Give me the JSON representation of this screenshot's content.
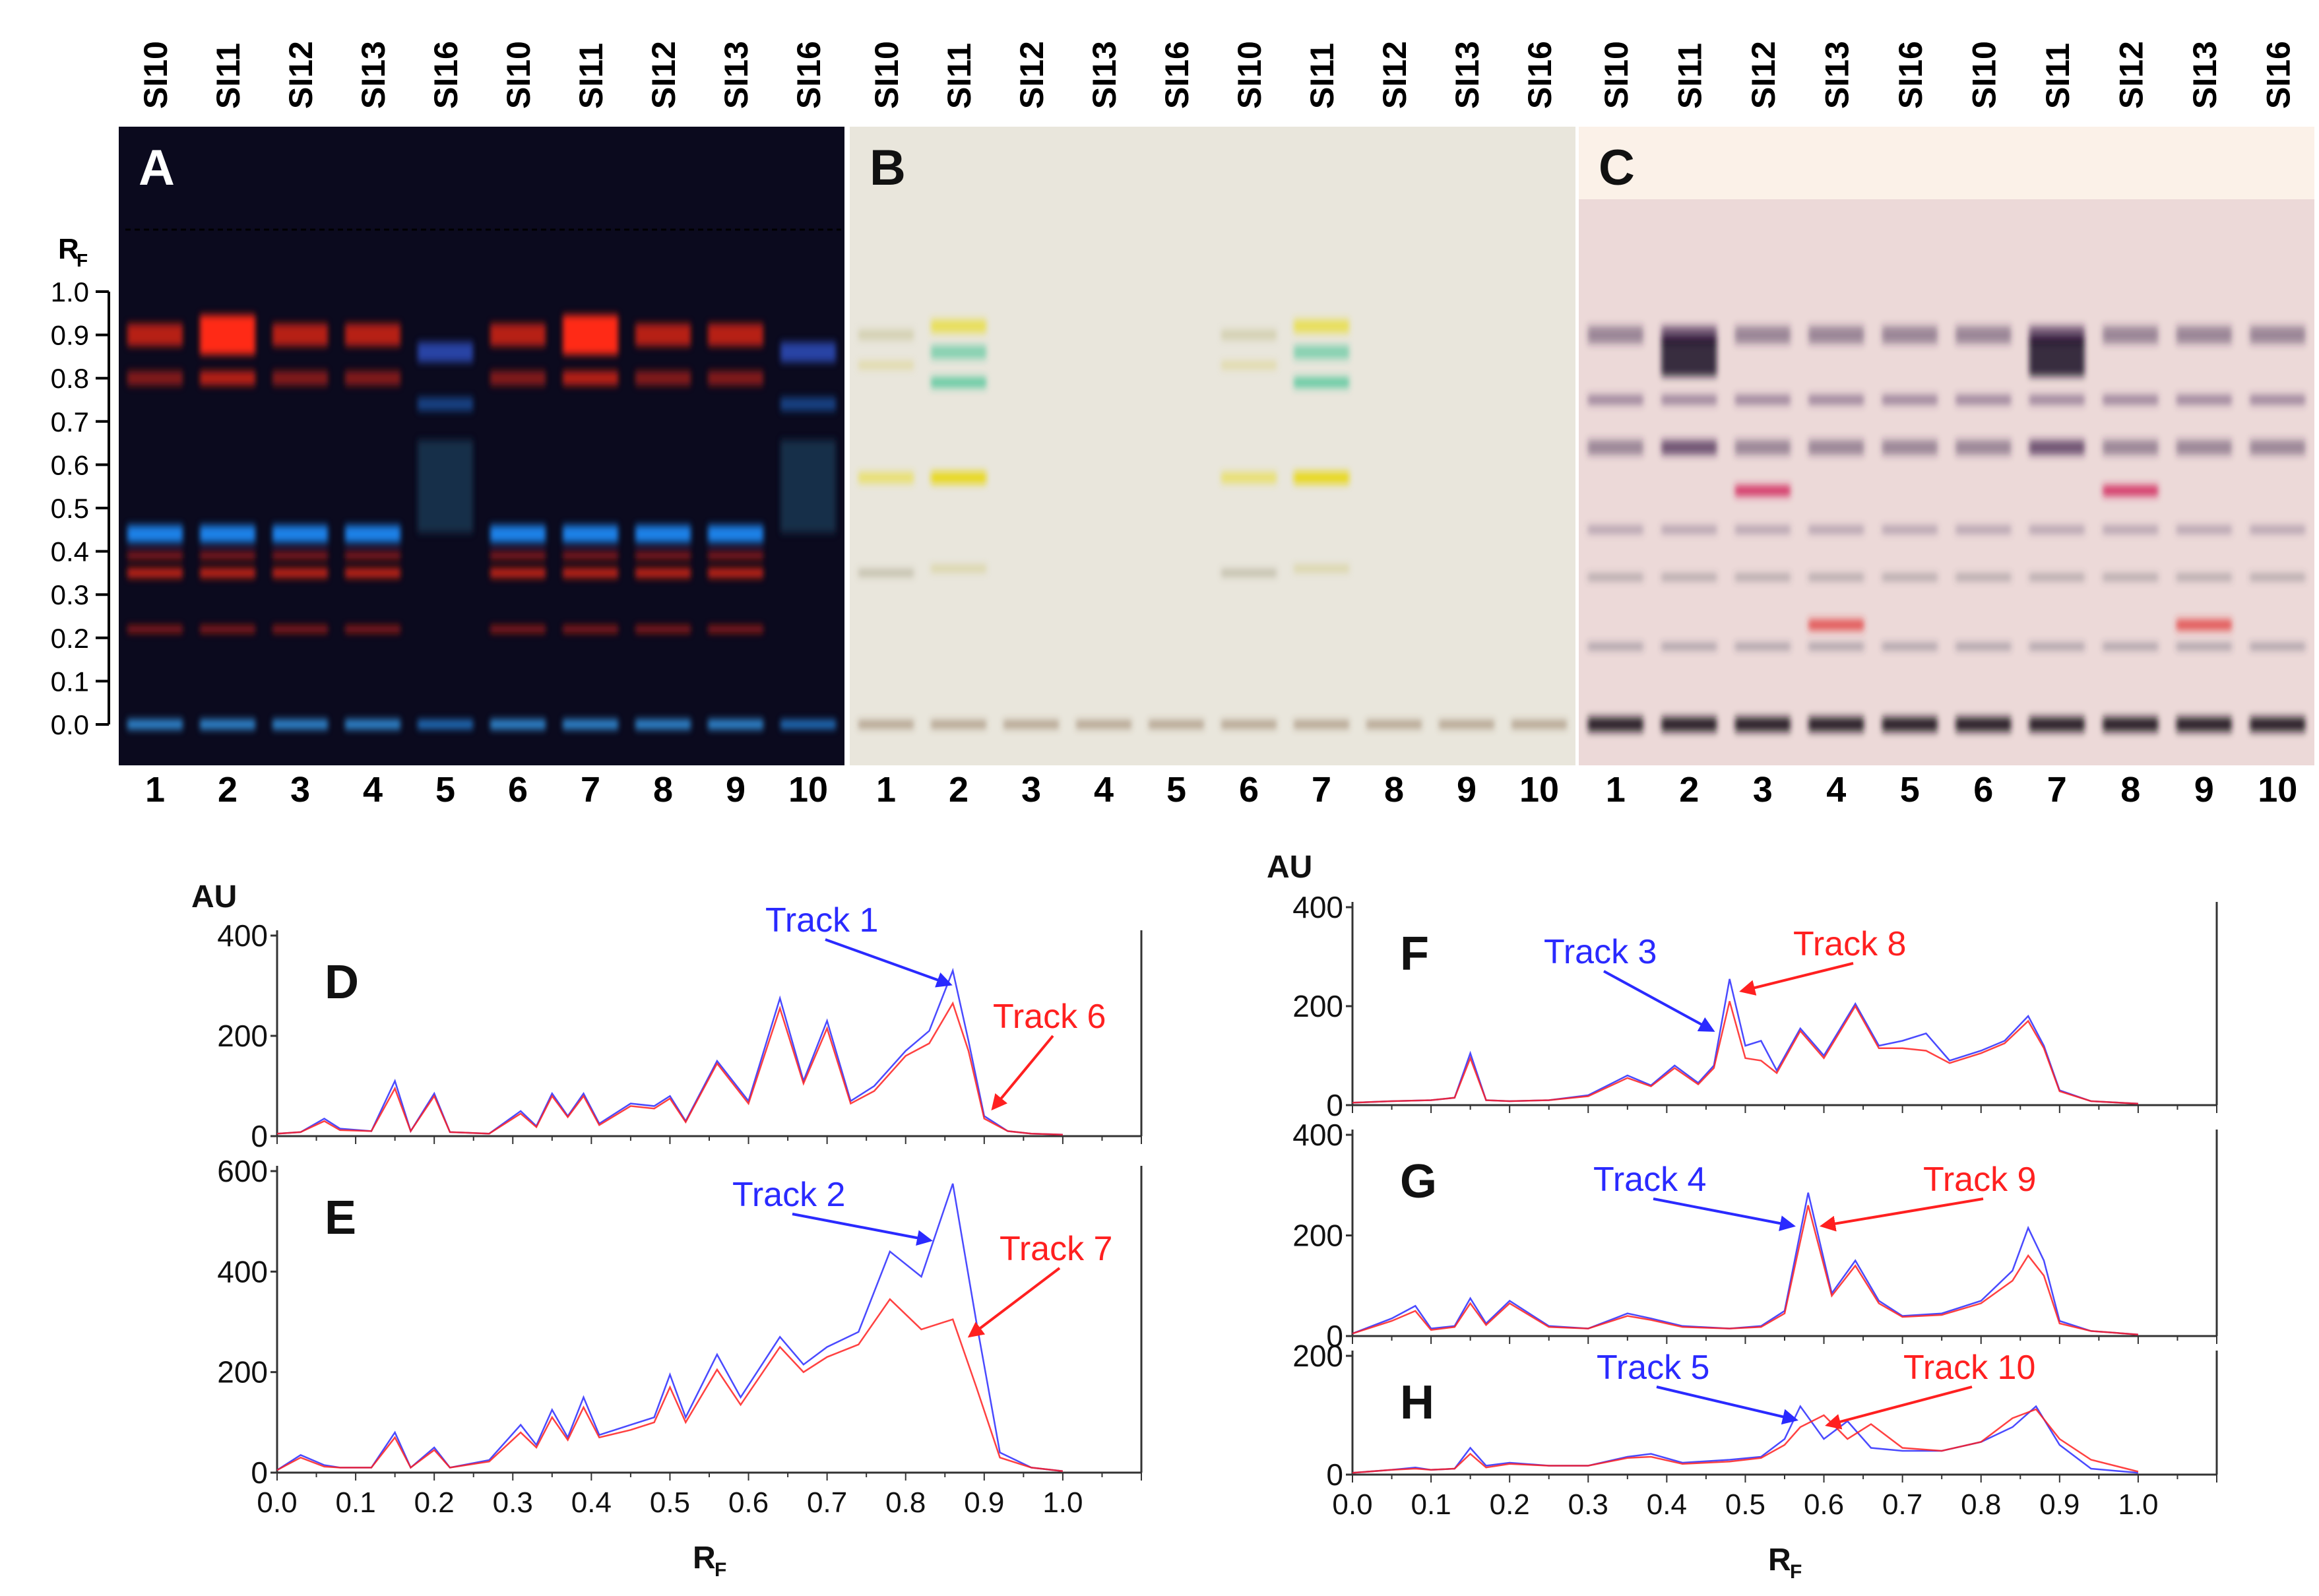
{
  "plates": {
    "sample_labels": [
      "SI10",
      "SI11",
      "SI12",
      "SI13",
      "SI16",
      "SI10",
      "SI11",
      "SI12",
      "SI13",
      "SI16"
    ],
    "track_numbers": [
      "1",
      "2",
      "3",
      "4",
      "5",
      "6",
      "7",
      "8",
      "9",
      "10"
    ],
    "rf_axis_label": "R",
    "rf_axis_subscript": "F",
    "rf_ticks": [
      "1.0",
      "0.9",
      "0.8",
      "0.7",
      "0.6",
      "0.5",
      "0.4",
      "0.3",
      "0.2",
      "0.1",
      "0.0"
    ],
    "panels": [
      {
        "letter": "A",
        "background": "#0b0a1e",
        "illumination": "fluorescence (UV 366 nm)"
      },
      {
        "letter": "B",
        "background": "#e9e6dc",
        "illumination": "white light"
      },
      {
        "letter": "C",
        "background": "#ecd9d8",
        "illumination": "white light, derivatized"
      }
    ],
    "colors": {
      "A_red": "#ff2a12",
      "A_blue": "#1f8fff",
      "B_yellow": "#e8dd3a",
      "B_green": "#2fbf8a",
      "C_purple": "#3a2048",
      "C_magenta": "#d0215a"
    }
  },
  "densitograms": {
    "y_unit_label": "AU",
    "x_label": "R",
    "x_label_subscript": "F",
    "x_ticks": [
      "0.0",
      "0.1",
      "0.2",
      "0.3",
      "0.4",
      "0.5",
      "0.6",
      "0.7",
      "0.8",
      "0.9",
      "1.0"
    ],
    "series_colors": {
      "blue": "#2a2aff",
      "red": "#ff2020"
    }
  },
  "chart_data": [
    {
      "type": "line",
      "panel": "D",
      "xlabel": "RF",
      "ylabel": "AU",
      "xlim": [
        0.0,
        1.1
      ],
      "ylim": [
        0,
        400
      ],
      "yticks": [
        0,
        200,
        400
      ],
      "annotations": [
        {
          "text": "Track 1",
          "color": "blue"
        },
        {
          "text": "Track 6",
          "color": "red"
        }
      ],
      "series": [
        {
          "name": "Track 1",
          "color": "#2a2aff",
          "x": [
            0.0,
            0.03,
            0.06,
            0.08,
            0.12,
            0.15,
            0.17,
            0.2,
            0.22,
            0.27,
            0.31,
            0.33,
            0.35,
            0.37,
            0.39,
            0.41,
            0.45,
            0.48,
            0.5,
            0.52,
            0.56,
            0.6,
            0.64,
            0.67,
            0.7,
            0.73,
            0.76,
            0.8,
            0.83,
            0.86,
            0.88,
            0.9,
            0.93,
            0.96,
            1.0
          ],
          "y": [
            5,
            8,
            35,
            15,
            10,
            110,
            10,
            85,
            8,
            5,
            50,
            20,
            85,
            40,
            85,
            25,
            65,
            60,
            80,
            30,
            150,
            70,
            275,
            110,
            230,
            70,
            100,
            170,
            210,
            330,
            190,
            40,
            10,
            5,
            3
          ]
        },
        {
          "name": "Track 6",
          "color": "#ff2020",
          "x": [
            0.0,
            0.03,
            0.06,
            0.08,
            0.12,
            0.15,
            0.17,
            0.2,
            0.22,
            0.27,
            0.31,
            0.33,
            0.35,
            0.37,
            0.39,
            0.41,
            0.45,
            0.48,
            0.5,
            0.52,
            0.56,
            0.6,
            0.64,
            0.67,
            0.7,
            0.73,
            0.76,
            0.8,
            0.83,
            0.86,
            0.88,
            0.9,
            0.93,
            0.96,
            1.0
          ],
          "y": [
            5,
            8,
            30,
            12,
            10,
            95,
            10,
            80,
            8,
            5,
            45,
            18,
            80,
            38,
            80,
            22,
            60,
            55,
            75,
            28,
            145,
            65,
            255,
            105,
            215,
            65,
            90,
            160,
            185,
            265,
            170,
            35,
            10,
            5,
            3
          ]
        }
      ]
    },
    {
      "type": "line",
      "panel": "E",
      "xlabel": "RF",
      "ylabel": "AU",
      "xlim": [
        0.0,
        1.1
      ],
      "ylim": [
        0,
        600
      ],
      "yticks": [
        0,
        200,
        400,
        600
      ],
      "annotations": [
        {
          "text": "Track 2",
          "color": "blue"
        },
        {
          "text": "Track 7",
          "color": "red"
        }
      ],
      "series": [
        {
          "name": "Track 2",
          "color": "#2a2aff",
          "x": [
            0.0,
            0.03,
            0.06,
            0.08,
            0.12,
            0.15,
            0.17,
            0.2,
            0.22,
            0.27,
            0.31,
            0.33,
            0.35,
            0.37,
            0.39,
            0.41,
            0.45,
            0.48,
            0.5,
            0.52,
            0.56,
            0.59,
            0.64,
            0.67,
            0.7,
            0.74,
            0.78,
            0.82,
            0.86,
            0.89,
            0.92,
            0.96,
            1.0
          ],
          "y": [
            5,
            35,
            15,
            10,
            10,
            80,
            10,
            50,
            10,
            25,
            95,
            55,
            125,
            70,
            150,
            75,
            95,
            110,
            195,
            110,
            235,
            150,
            270,
            215,
            250,
            280,
            440,
            390,
            575,
            300,
            40,
            10,
            3
          ]
        },
        {
          "name": "Track 7",
          "color": "#ff2020",
          "x": [
            0.0,
            0.03,
            0.06,
            0.08,
            0.12,
            0.15,
            0.17,
            0.2,
            0.22,
            0.27,
            0.31,
            0.33,
            0.35,
            0.37,
            0.39,
            0.41,
            0.45,
            0.48,
            0.5,
            0.52,
            0.56,
            0.59,
            0.64,
            0.67,
            0.7,
            0.74,
            0.78,
            0.82,
            0.86,
            0.89,
            0.92,
            0.96,
            1.0
          ],
          "y": [
            5,
            30,
            12,
            10,
            10,
            70,
            10,
            45,
            10,
            22,
            80,
            50,
            110,
            65,
            130,
            70,
            85,
            100,
            170,
            100,
            205,
            135,
            250,
            200,
            230,
            255,
            345,
            285,
            305,
            170,
            30,
            10,
            3
          ]
        }
      ]
    },
    {
      "type": "line",
      "panel": "F",
      "xlabel": "RF",
      "ylabel": "AU",
      "xlim": [
        0.0,
        1.1
      ],
      "ylim": [
        0,
        400
      ],
      "yticks": [
        0,
        200,
        400
      ],
      "annotations": [
        {
          "text": "Track 8",
          "color": "red"
        },
        {
          "text": "Track 3",
          "color": "blue"
        }
      ],
      "series": [
        {
          "name": "Track 3",
          "color": "#2a2aff",
          "x": [
            0.0,
            0.05,
            0.1,
            0.13,
            0.15,
            0.17,
            0.2,
            0.25,
            0.3,
            0.35,
            0.38,
            0.41,
            0.44,
            0.46,
            0.48,
            0.5,
            0.52,
            0.54,
            0.57,
            0.6,
            0.64,
            0.67,
            0.7,
            0.73,
            0.76,
            0.8,
            0.83,
            0.86,
            0.88,
            0.9,
            0.94,
            1.0
          ],
          "y": [
            5,
            8,
            10,
            15,
            105,
            10,
            8,
            10,
            20,
            60,
            40,
            80,
            45,
            80,
            255,
            120,
            130,
            70,
            155,
            100,
            205,
            120,
            130,
            145,
            90,
            110,
            130,
            180,
            120,
            30,
            8,
            3
          ]
        },
        {
          "name": "Track 8",
          "color": "#ff2020",
          "x": [
            0.0,
            0.05,
            0.1,
            0.13,
            0.15,
            0.17,
            0.2,
            0.25,
            0.3,
            0.35,
            0.38,
            0.41,
            0.44,
            0.46,
            0.48,
            0.5,
            0.52,
            0.54,
            0.57,
            0.6,
            0.64,
            0.67,
            0.7,
            0.73,
            0.76,
            0.8,
            0.83,
            0.86,
            0.88,
            0.9,
            0.94,
            1.0
          ],
          "y": [
            5,
            8,
            10,
            15,
            95,
            10,
            8,
            10,
            18,
            55,
            38,
            75,
            42,
            75,
            210,
            95,
            90,
            65,
            150,
            95,
            200,
            115,
            115,
            110,
            85,
            105,
            125,
            170,
            115,
            28,
            8,
            3
          ]
        }
      ]
    },
    {
      "type": "line",
      "panel": "G",
      "xlabel": "RF",
      "ylabel": "AU",
      "xlim": [
        0.0,
        1.1
      ],
      "ylim": [
        0,
        400
      ],
      "yticks": [
        0,
        200,
        400
      ],
      "annotations": [
        {
          "text": "Track 4",
          "color": "blue"
        },
        {
          "text": "Track 9",
          "color": "red"
        }
      ],
      "series": [
        {
          "name": "Track 4",
          "color": "#2a2aff",
          "x": [
            0.0,
            0.05,
            0.08,
            0.1,
            0.13,
            0.15,
            0.17,
            0.2,
            0.25,
            0.3,
            0.35,
            0.38,
            0.42,
            0.48,
            0.52,
            0.55,
            0.58,
            0.61,
            0.64,
            0.67,
            0.7,
            0.75,
            0.8,
            0.84,
            0.86,
            0.88,
            0.9,
            0.94,
            1.0
          ],
          "y": [
            5,
            35,
            60,
            15,
            20,
            75,
            25,
            70,
            20,
            15,
            45,
            35,
            20,
            15,
            20,
            50,
            285,
            85,
            150,
            70,
            40,
            45,
            70,
            130,
            215,
            150,
            30,
            10,
            3
          ]
        },
        {
          "name": "Track 9",
          "color": "#ff2020",
          "x": [
            0.0,
            0.05,
            0.08,
            0.1,
            0.13,
            0.15,
            0.17,
            0.2,
            0.25,
            0.3,
            0.35,
            0.38,
            0.42,
            0.48,
            0.52,
            0.55,
            0.58,
            0.61,
            0.64,
            0.67,
            0.7,
            0.75,
            0.8,
            0.84,
            0.86,
            0.88,
            0.9,
            0.94,
            1.0
          ],
          "y": [
            5,
            30,
            50,
            12,
            18,
            65,
            22,
            65,
            18,
            15,
            40,
            32,
            18,
            15,
            18,
            45,
            260,
            80,
            140,
            65,
            38,
            42,
            65,
            110,
            160,
            120,
            25,
            10,
            3
          ]
        }
      ]
    },
    {
      "type": "line",
      "panel": "H",
      "xlabel": "RF",
      "ylabel": "AU",
      "xlim": [
        0.0,
        1.1
      ],
      "ylim": [
        0,
        200
      ],
      "yticks": [
        0,
        200
      ],
      "annotations": [
        {
          "text": "Track 5",
          "color": "blue"
        },
        {
          "text": "Track 10",
          "color": "red"
        }
      ],
      "series": [
        {
          "name": "Track 5",
          "color": "#2a2aff",
          "x": [
            0.0,
            0.05,
            0.08,
            0.1,
            0.13,
            0.15,
            0.17,
            0.2,
            0.25,
            0.3,
            0.35,
            0.38,
            0.42,
            0.48,
            0.52,
            0.55,
            0.57,
            0.6,
            0.63,
            0.66,
            0.7,
            0.75,
            0.8,
            0.84,
            0.87,
            0.9,
            0.94,
            1.0
          ],
          "y": [
            3,
            8,
            12,
            8,
            10,
            45,
            15,
            20,
            15,
            15,
            30,
            35,
            20,
            25,
            30,
            60,
            115,
            60,
            90,
            45,
            40,
            40,
            55,
            80,
            115,
            50,
            10,
            3
          ]
        },
        {
          "name": "Track 10",
          "color": "#ff2020",
          "x": [
            0.0,
            0.05,
            0.08,
            0.1,
            0.13,
            0.15,
            0.17,
            0.2,
            0.25,
            0.3,
            0.35,
            0.38,
            0.42,
            0.48,
            0.52,
            0.55,
            0.57,
            0.6,
            0.63,
            0.66,
            0.7,
            0.75,
            0.8,
            0.84,
            0.87,
            0.9,
            0.94,
            1.0
          ],
          "y": [
            3,
            8,
            10,
            8,
            10,
            35,
            12,
            18,
            15,
            15,
            28,
            30,
            18,
            22,
            28,
            50,
            80,
            100,
            60,
            85,
            45,
            40,
            55,
            95,
            110,
            60,
            25,
            5
          ]
        }
      ]
    }
  ]
}
